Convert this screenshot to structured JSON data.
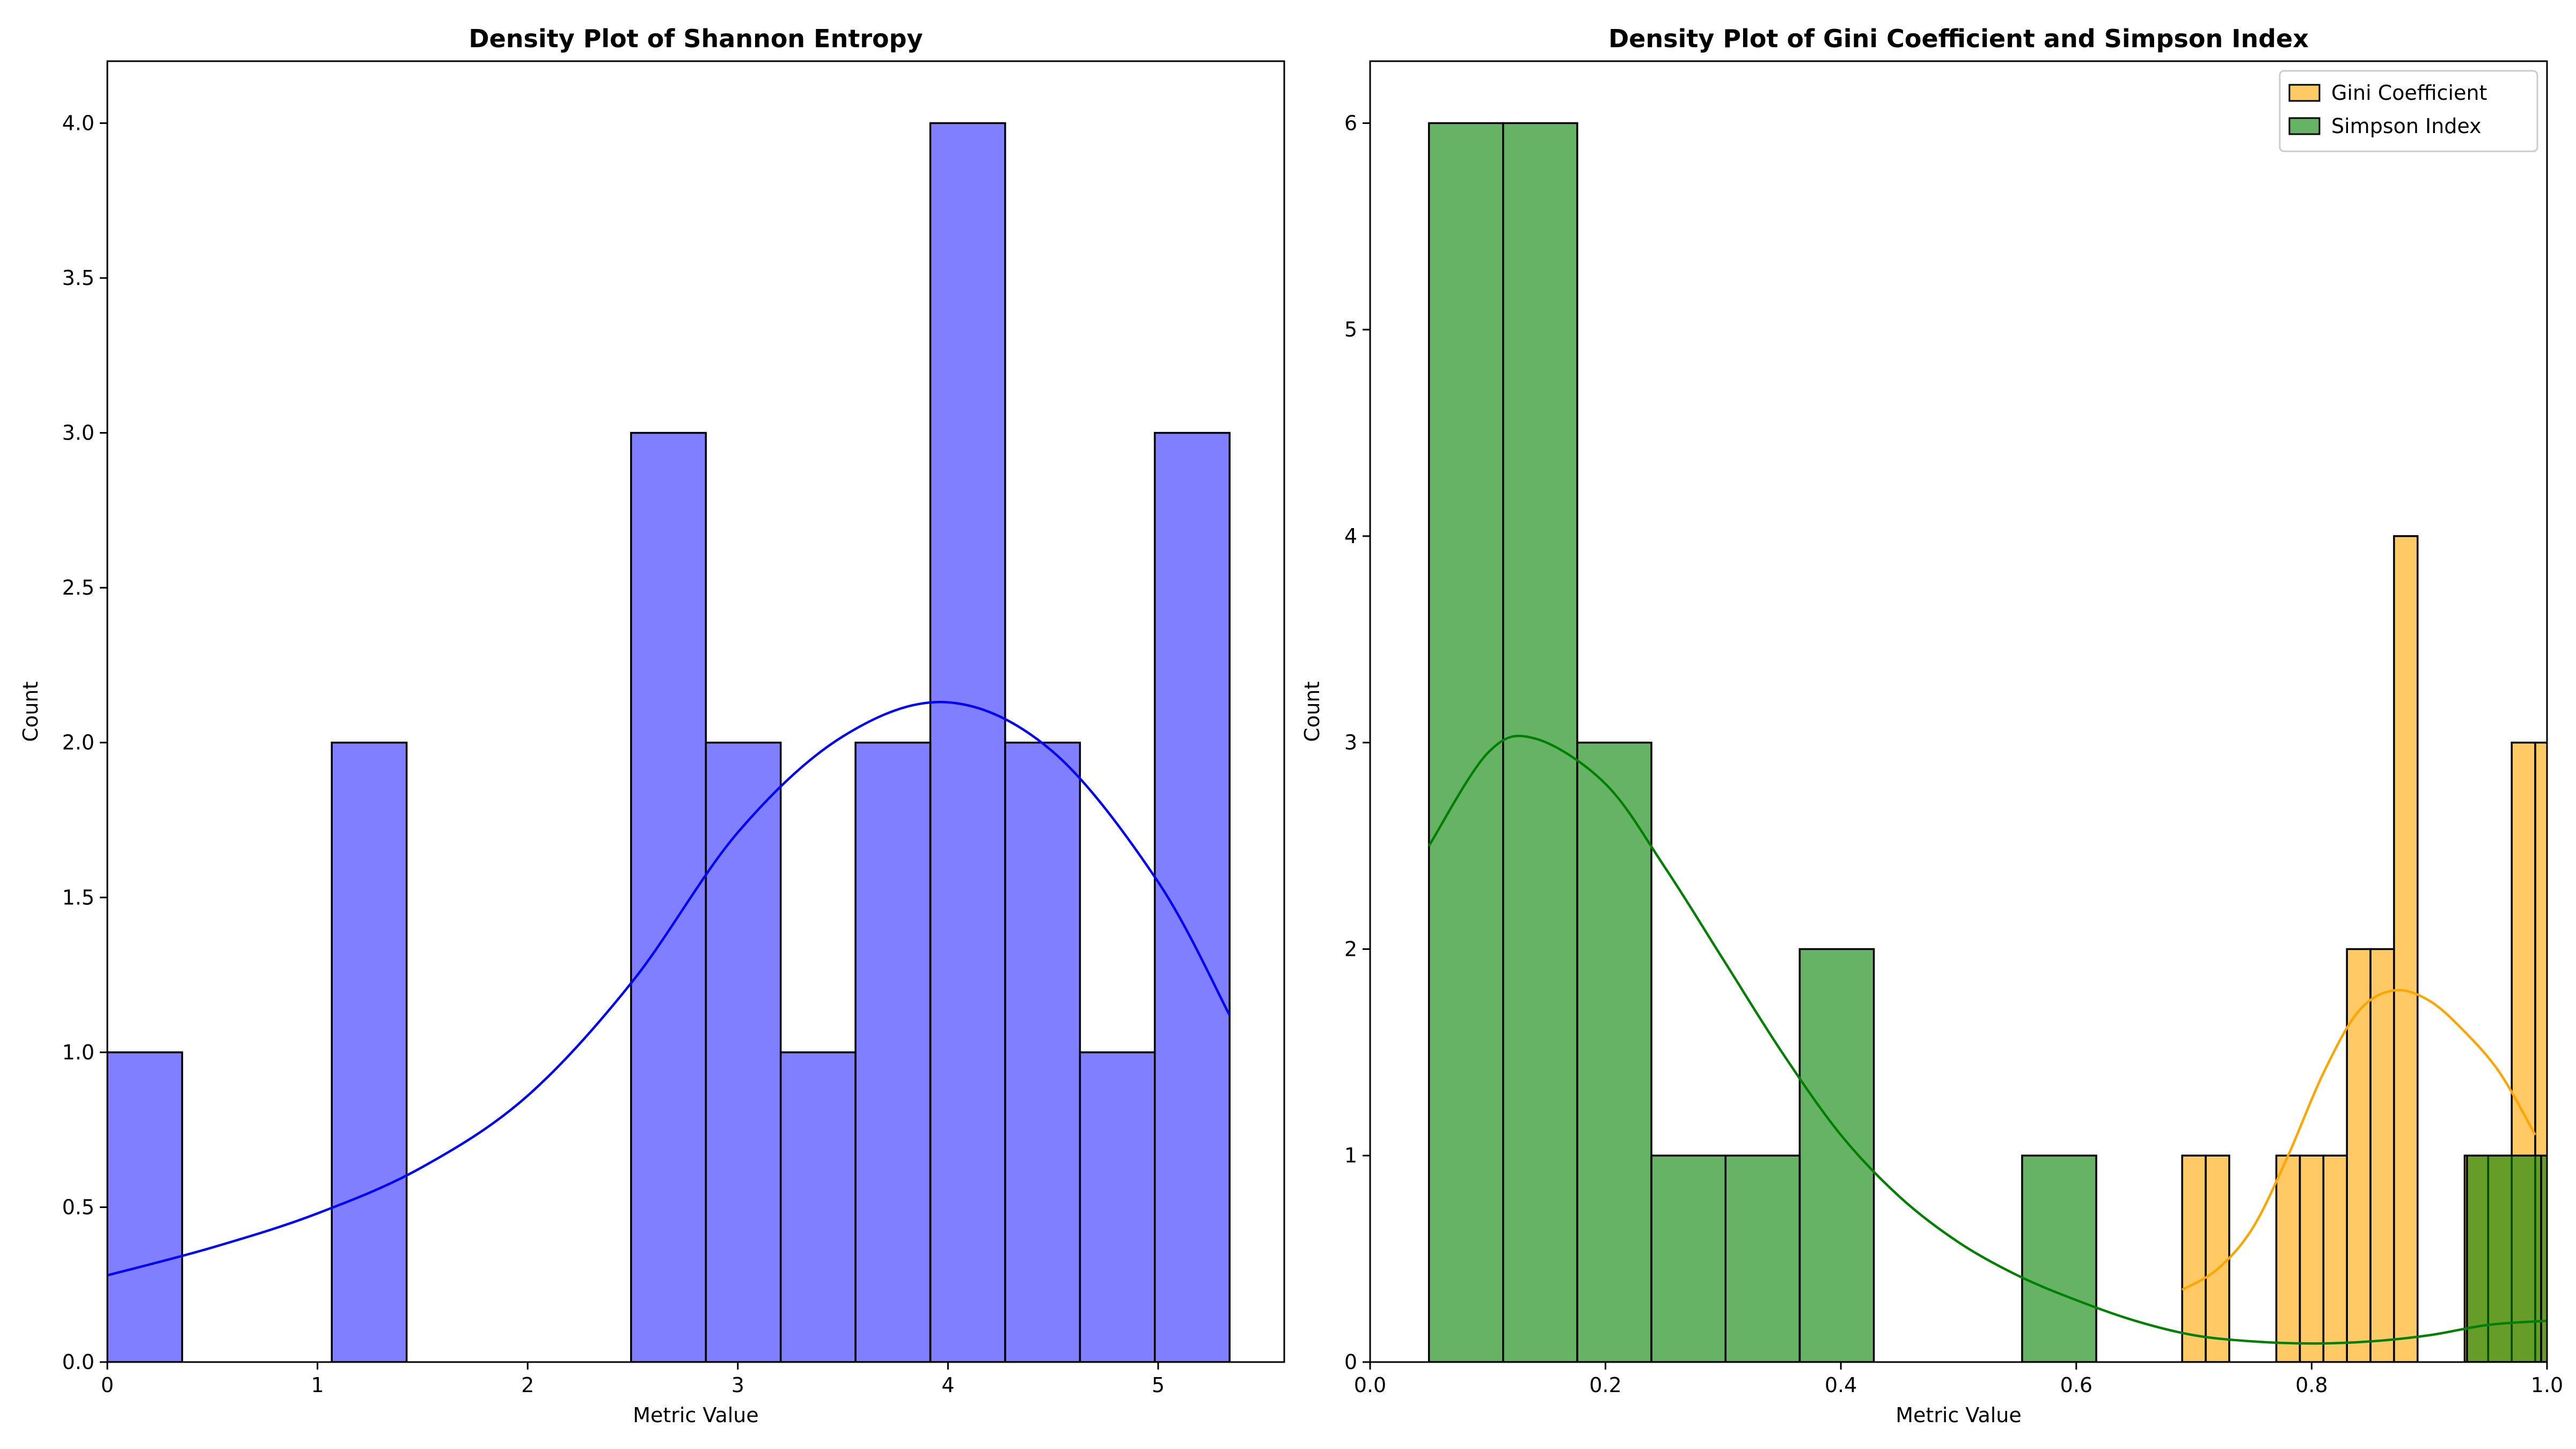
{
  "chart_data": [
    {
      "type": "histogram",
      "title": "Density Plot of Shannon Entropy",
      "xlabel": "Metric Value",
      "ylabel": "Count",
      "xlim": [
        0,
        5.6
      ],
      "ylim": [
        0,
        4.2
      ],
      "xticks": [
        0,
        1,
        2,
        3,
        4,
        5
      ],
      "xtick_labels": [
        "0",
        "1",
        "2",
        "3",
        "4",
        "5"
      ],
      "yticks": [
        0,
        0.5,
        1,
        1.5,
        2,
        2.5,
        3,
        3.5,
        4
      ],
      "ytick_labels": [
        "0.0",
        "0.5",
        "1.0",
        "1.5",
        "2.0",
        "2.5",
        "3.0",
        "3.5",
        "4.0"
      ],
      "grid": false,
      "series": [
        {
          "color": "#0000ff",
          "bin_edges": [
            0,
            0.356,
            0.712,
            1.068,
            1.424,
            1.78,
            2.136,
            2.492,
            2.848,
            3.204,
            3.56,
            3.916,
            4.272,
            4.628,
            4.984,
            5.34
          ],
          "counts": [
            1,
            0,
            0,
            2,
            0,
            0,
            0,
            3,
            2,
            1,
            2,
            4,
            2,
            1,
            3
          ],
          "kde": {
            "x": [
              0,
              0.5,
              1.0,
              1.5,
              2.0,
              2.5,
              3.0,
              3.5,
              4.0,
              4.5,
              5.0,
              5.34
            ],
            "y": [
              0.28,
              0.37,
              0.48,
              0.63,
              0.86,
              1.23,
              1.71,
              2.02,
              2.13,
              1.97,
              1.55,
              1.12
            ]
          }
        }
      ]
    },
    {
      "type": "histogram",
      "title": "Density Plot of Gini Coefficient and Simpson Index",
      "xlabel": "Metric Value",
      "ylabel": "Count",
      "xlim": [
        0,
        1.0
      ],
      "ylim": [
        0,
        6.3
      ],
      "xticks": [
        0,
        0.2,
        0.4,
        0.6,
        0.8,
        1.0
      ],
      "xtick_labels": [
        "0.0",
        "0.2",
        "0.4",
        "0.6",
        "0.8",
        "1.0"
      ],
      "yticks": [
        0,
        1,
        2,
        3,
        4,
        5,
        6
      ],
      "ytick_labels": [
        "0",
        "1",
        "2",
        "3",
        "4",
        "5",
        "6"
      ],
      "grid": false,
      "legend_position": "top-right",
      "series": [
        {
          "name": "Gini Coefficient",
          "color": "#ffa500",
          "bin_edges": [
            0.69,
            0.71,
            0.73,
            0.75,
            0.77,
            0.79,
            0.81,
            0.83,
            0.85,
            0.87,
            0.89,
            0.91,
            0.93,
            0.95,
            0.97,
            0.99,
            1.01
          ],
          "counts": [
            1,
            1,
            0,
            0,
            1,
            1,
            1,
            2,
            2,
            4,
            0,
            0,
            1,
            1,
            3,
            3
          ],
          "kde": {
            "x": [
              0.69,
              0.72,
              0.75,
              0.78,
              0.81,
              0.84,
              0.87,
              0.9,
              0.93,
              0.96,
              0.99
            ],
            "y": [
              0.35,
              0.45,
              0.65,
              1.0,
              1.4,
              1.7,
              1.8,
              1.75,
              1.6,
              1.4,
              1.1
            ]
          }
        },
        {
          "name": "Simpson Index",
          "color": "#008000",
          "bin_edges": [
            0.05,
            0.113,
            0.176,
            0.239,
            0.302,
            0.365,
            0.428,
            0.491,
            0.554,
            0.617,
            0.68,
            0.743,
            0.806,
            0.869,
            0.932,
            0.995,
            1.058
          ],
          "counts": [
            6,
            6,
            3,
            1,
            1,
            2,
            0,
            0,
            1,
            0,
            0,
            0,
            0,
            0,
            1,
            1
          ],
          "kde": {
            "x": [
              0.05,
              0.1,
              0.14,
              0.2,
              0.25,
              0.3,
              0.35,
              0.4,
              0.45,
              0.5,
              0.55,
              0.6,
              0.65,
              0.7,
              0.75,
              0.8,
              0.85,
              0.9,
              0.95,
              1.0
            ],
            "y": [
              2.5,
              2.95,
              3.02,
              2.8,
              2.4,
              1.95,
              1.5,
              1.1,
              0.8,
              0.58,
              0.42,
              0.3,
              0.2,
              0.13,
              0.1,
              0.09,
              0.1,
              0.13,
              0.18,
              0.2
            ]
          }
        }
      ]
    }
  ]
}
